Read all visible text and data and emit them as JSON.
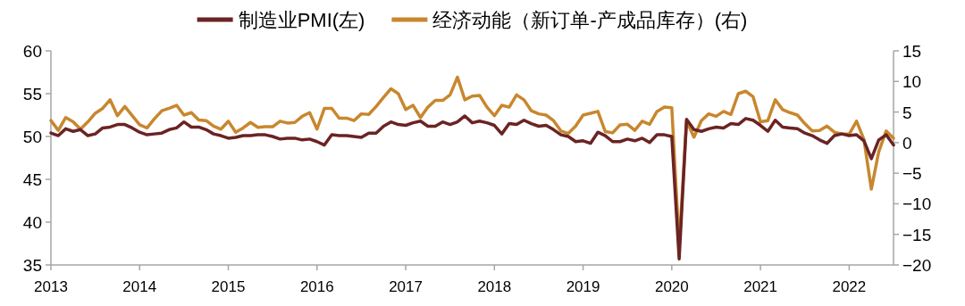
{
  "chart_data": {
    "type": "line",
    "legend": "top",
    "grid": false,
    "x": [
      "2013-01",
      "2013-02",
      "2013-03",
      "2013-04",
      "2013-05",
      "2013-06",
      "2013-07",
      "2013-08",
      "2013-09",
      "2013-10",
      "2013-11",
      "2013-12",
      "2014-01",
      "2014-02",
      "2014-03",
      "2014-04",
      "2014-05",
      "2014-06",
      "2014-07",
      "2014-08",
      "2014-09",
      "2014-10",
      "2014-11",
      "2014-12",
      "2015-01",
      "2015-02",
      "2015-03",
      "2015-04",
      "2015-05",
      "2015-06",
      "2015-07",
      "2015-08",
      "2015-09",
      "2015-10",
      "2015-11",
      "2015-12",
      "2016-01",
      "2016-02",
      "2016-03",
      "2016-04",
      "2016-05",
      "2016-06",
      "2016-07",
      "2016-08",
      "2016-09",
      "2016-10",
      "2016-11",
      "2016-12",
      "2017-01",
      "2017-02",
      "2017-03",
      "2017-04",
      "2017-05",
      "2017-06",
      "2017-07",
      "2017-08",
      "2017-09",
      "2017-10",
      "2017-11",
      "2017-12",
      "2018-01",
      "2018-02",
      "2018-03",
      "2018-04",
      "2018-05",
      "2018-06",
      "2018-07",
      "2018-08",
      "2018-09",
      "2018-10",
      "2018-11",
      "2018-12",
      "2019-01",
      "2019-02",
      "2019-03",
      "2019-04",
      "2019-05",
      "2019-06",
      "2019-07",
      "2019-08",
      "2019-09",
      "2019-10",
      "2019-11",
      "2019-12",
      "2020-01",
      "2020-02",
      "2020-03",
      "2020-04",
      "2020-05",
      "2020-06",
      "2020-07",
      "2020-08",
      "2020-09",
      "2020-10",
      "2020-11",
      "2020-12",
      "2021-01",
      "2021-02",
      "2021-03",
      "2021-04",
      "2021-05",
      "2021-06",
      "2021-07",
      "2021-08",
      "2021-09",
      "2021-10",
      "2021-11",
      "2021-12",
      "2022-01",
      "2022-02",
      "2022-03",
      "2022-04",
      "2022-05",
      "2022-06",
      "2022-07"
    ],
    "xlim": [
      "2013-01",
      "2022-07"
    ],
    "xticks": [
      "2013",
      "2014",
      "2015",
      "2016",
      "2017",
      "2018",
      "2019",
      "2020",
      "2021",
      "2022"
    ],
    "ylim": [
      35,
      60
    ],
    "yticks": [
      35,
      40,
      45,
      50,
      55,
      60
    ],
    "y2lim": [
      -20,
      15
    ],
    "y2ticks": [
      -20,
      -15,
      -10,
      -5,
      0,
      5,
      10,
      15
    ],
    "series": [
      {
        "name": "制造业PMI(左)",
        "color": "#6b2323",
        "values": [
          50.4,
          50.1,
          50.9,
          50.6,
          50.8,
          50.1,
          50.3,
          51.0,
          51.1,
          51.4,
          51.4,
          51.0,
          50.5,
          50.2,
          50.3,
          50.4,
          50.8,
          51.0,
          51.7,
          51.1,
          51.1,
          50.8,
          50.3,
          50.1,
          49.8,
          49.9,
          50.1,
          50.1,
          50.2,
          50.2,
          50.0,
          49.7,
          49.8,
          49.8,
          49.6,
          49.7,
          49.4,
          49.0,
          50.2,
          50.1,
          50.1,
          50.0,
          49.9,
          50.4,
          50.4,
          51.2,
          51.7,
          51.4,
          51.3,
          51.6,
          51.8,
          51.2,
          51.2,
          51.7,
          51.4,
          51.7,
          52.4,
          51.6,
          51.8,
          51.6,
          51.3,
          50.3,
          51.5,
          51.4,
          51.9,
          51.5,
          51.2,
          51.3,
          50.8,
          50.2,
          50.0,
          49.4,
          49.5,
          49.2,
          50.5,
          50.1,
          49.4,
          49.4,
          49.7,
          49.5,
          49.8,
          49.3,
          50.2,
          50.2,
          50.0,
          35.7,
          52.0,
          50.8,
          50.6,
          50.9,
          51.1,
          51.0,
          51.5,
          51.4,
          52.1,
          51.9,
          51.3,
          50.6,
          51.9,
          51.1,
          51.0,
          50.9,
          50.4,
          50.1,
          49.6,
          49.2,
          50.1,
          50.3,
          50.1,
          50.2,
          49.5,
          47.4,
          49.6,
          50.2,
          49.0
        ]
      },
      {
        "name": "经济动能（新订单-产成品库存）(右)",
        "color": "#c8872e",
        "axis": "y2",
        "values": [
          3.6,
          2.0,
          4.1,
          3.4,
          2.2,
          3.4,
          4.8,
          5.6,
          7.0,
          4.4,
          5.9,
          4.4,
          2.9,
          2.4,
          3.9,
          5.2,
          5.6,
          6.1,
          4.5,
          4.9,
          3.7,
          3.6,
          2.7,
          2.2,
          3.5,
          1.7,
          2.4,
          3.3,
          2.5,
          2.6,
          2.6,
          3.5,
          3.2,
          3.3,
          4.3,
          4.9,
          2.2,
          5.6,
          5.6,
          4.0,
          4.0,
          3.6,
          4.7,
          4.6,
          5.9,
          7.4,
          8.8,
          8.0,
          5.4,
          6.1,
          4.1,
          5.8,
          6.9,
          6.9,
          7.8,
          10.7,
          7.0,
          7.6,
          7.7,
          5.8,
          4.4,
          6.1,
          5.8,
          7.8,
          7.0,
          5.2,
          4.7,
          4.5,
          3.6,
          1.9,
          1.5,
          2.7,
          4.5,
          4.8,
          5.1,
          1.8,
          1.6,
          2.9,
          3.0,
          2.0,
          3.5,
          3.0,
          5.1,
          5.8,
          5.7,
          -16.8,
          3.6,
          0.9,
          3.6,
          4.7,
          4.3,
          5.1,
          4.6,
          8.0,
          8.4,
          7.5,
          3.4,
          3.6,
          7.0,
          5.4,
          4.9,
          4.5,
          3.1,
          1.9,
          2.0,
          2.7,
          1.7,
          1.4,
          1.4,
          3.5,
          0.5,
          -7.6,
          -1.5,
          1.9,
          0.7
        ]
      }
    ]
  }
}
